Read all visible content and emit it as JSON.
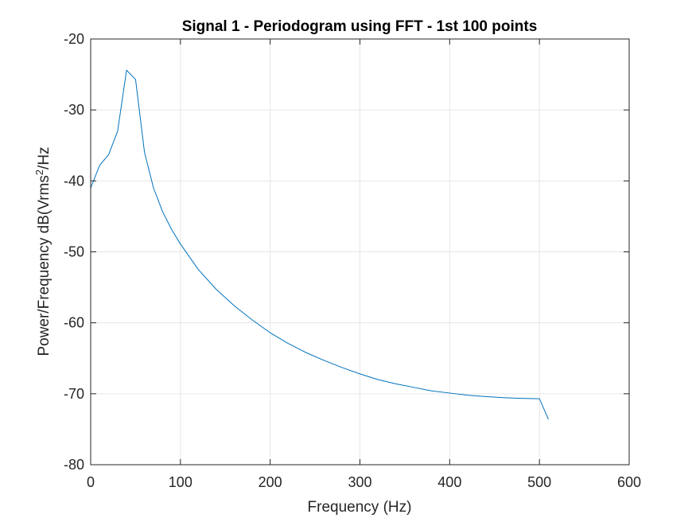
{
  "chart_data": {
    "type": "line",
    "title": "Signal 1 - Periodogram using FFT - 1st 100 points",
    "xlabel": "Frequency (Hz)",
    "ylabel_parts": {
      "before": "Power/Frequency dB(Vrms",
      "sup": "2",
      "after": "/Hz"
    },
    "xlim": [
      0,
      600
    ],
    "ylim": [
      -80,
      -20
    ],
    "xticks": [
      0,
      100,
      200,
      300,
      400,
      500,
      600
    ],
    "yticks": [
      -80,
      -70,
      -60,
      -50,
      -40,
      -30,
      -20
    ],
    "grid": true,
    "colors": {
      "series": "#0072BD",
      "grid": "#e6e6e6",
      "axis": "#262626"
    },
    "series": [
      {
        "x": [
          0,
          10,
          20,
          30,
          40,
          50,
          60,
          70,
          80,
          90,
          100,
          120,
          140,
          160,
          180,
          200,
          220,
          240,
          260,
          280,
          300,
          320,
          340,
          360,
          380,
          400,
          420,
          440,
          460,
          480,
          500,
          510
        ],
        "y": [
          -41.0,
          -37.8,
          -36.3,
          -33.0,
          -24.4,
          -25.7,
          -36.0,
          -41.0,
          -44.3,
          -46.8,
          -48.9,
          -52.5,
          -55.3,
          -57.6,
          -59.6,
          -61.4,
          -62.9,
          -64.2,
          -65.3,
          -66.3,
          -67.2,
          -68.0,
          -68.6,
          -69.1,
          -69.6,
          -69.9,
          -70.2,
          -70.4,
          -70.55,
          -70.65,
          -70.7,
          -73.6
        ]
      }
    ]
  }
}
